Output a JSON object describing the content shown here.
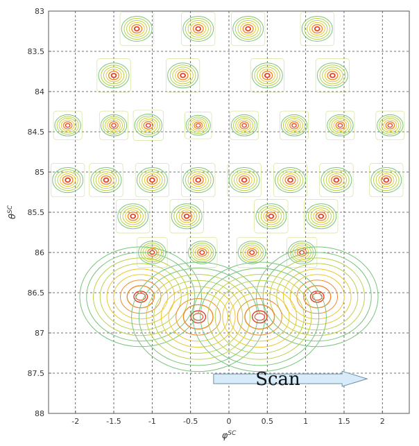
{
  "chart_data": {
    "type": "contour",
    "xlabel": "φ",
    "xlabel_sup": "SC",
    "ylabel": "θ",
    "ylabel_sup": "SC",
    "xlim": [
      -2.35,
      2.35
    ],
    "ylim": [
      88,
      83
    ],
    "y_reversed": true,
    "grid": true,
    "grid_style": "dashed",
    "x_ticks": [
      -2,
      -1.5,
      -1,
      -0.5,
      0,
      0.5,
      1,
      1.5,
      2
    ],
    "x_tick_labels": [
      "-2",
      "-1.5",
      "-1",
      "-0.5",
      "0",
      "0.5",
      "1",
      "1.5",
      "2"
    ],
    "y_ticks": [
      83,
      83.5,
      84,
      84.5,
      85,
      85.5,
      86,
      86.5,
      87,
      87.5,
      88
    ],
    "y_tick_labels": [
      "83",
      "83.5",
      "84",
      "84.5",
      "85",
      "85.5",
      "86",
      "86.5",
      "87",
      "87.5",
      "88"
    ],
    "contour_colors": [
      "#e53a20",
      "#ee8a2a",
      "#e8c830",
      "#b8d24a",
      "#76c47a"
    ],
    "peaks": [
      {
        "x": -1.2,
        "y": 83.22,
        "size": 1.0
      },
      {
        "x": -0.4,
        "y": 83.22,
        "size": 1.0
      },
      {
        "x": 0.25,
        "y": 83.22,
        "size": 1.0
      },
      {
        "x": 1.15,
        "y": 83.22,
        "size": 1.0
      },
      {
        "x": -1.5,
        "y": 83.8,
        "size": 1.0
      },
      {
        "x": -0.6,
        "y": 83.8,
        "size": 1.0
      },
      {
        "x": 0.5,
        "y": 83.8,
        "size": 1.0
      },
      {
        "x": 1.35,
        "y": 83.8,
        "size": 1.0
      },
      {
        "x": -2.1,
        "y": 84.42,
        "size": 0.85
      },
      {
        "x": -1.5,
        "y": 84.42,
        "size": 0.85
      },
      {
        "x": -1.05,
        "y": 84.42,
        "size": 0.9
      },
      {
        "x": -0.4,
        "y": 84.42,
        "size": 0.8
      },
      {
        "x": 0.2,
        "y": 84.42,
        "size": 0.85
      },
      {
        "x": 0.85,
        "y": 84.42,
        "size": 0.85
      },
      {
        "x": 1.45,
        "y": 84.42,
        "size": 0.85
      },
      {
        "x": 2.1,
        "y": 84.42,
        "size": 0.85
      },
      {
        "x": -2.1,
        "y": 85.1,
        "size": 1.0
      },
      {
        "x": -1.6,
        "y": 85.1,
        "size": 1.0
      },
      {
        "x": -1.0,
        "y": 85.1,
        "size": 1.0
      },
      {
        "x": -0.4,
        "y": 85.1,
        "size": 1.0
      },
      {
        "x": 0.2,
        "y": 85.1,
        "size": 1.0
      },
      {
        "x": 0.8,
        "y": 85.1,
        "size": 1.0
      },
      {
        "x": 1.4,
        "y": 85.1,
        "size": 1.0
      },
      {
        "x": 2.05,
        "y": 85.1,
        "size": 1.0
      },
      {
        "x": -1.25,
        "y": 85.55,
        "size": 1.0
      },
      {
        "x": -0.55,
        "y": 85.55,
        "size": 1.0
      },
      {
        "x": 0.55,
        "y": 85.55,
        "size": 1.0
      },
      {
        "x": 1.2,
        "y": 85.55,
        "size": 1.0
      },
      {
        "x": -1.0,
        "y": 86.0,
        "size": 0.9
      },
      {
        "x": -0.35,
        "y": 86.0,
        "size": 0.9
      },
      {
        "x": 0.3,
        "y": 86.0,
        "size": 0.9
      },
      {
        "x": 0.95,
        "y": 86.0,
        "size": 0.9
      },
      {
        "x": -1.15,
        "y": 86.55,
        "size": 2.1
      },
      {
        "x": 1.15,
        "y": 86.55,
        "size": 2.1
      },
      {
        "x": -0.4,
        "y": 86.8,
        "size": 2.3
      },
      {
        "x": 0.4,
        "y": 86.8,
        "size": 2.3
      }
    ],
    "annotation": {
      "text": "Scan",
      "arrow_from_x": -0.2,
      "arrow_to_x": 1.8,
      "y": 87.57,
      "arrow_fill": "#d7ecf8",
      "arrow_stroke": "#6a8fae"
    }
  }
}
